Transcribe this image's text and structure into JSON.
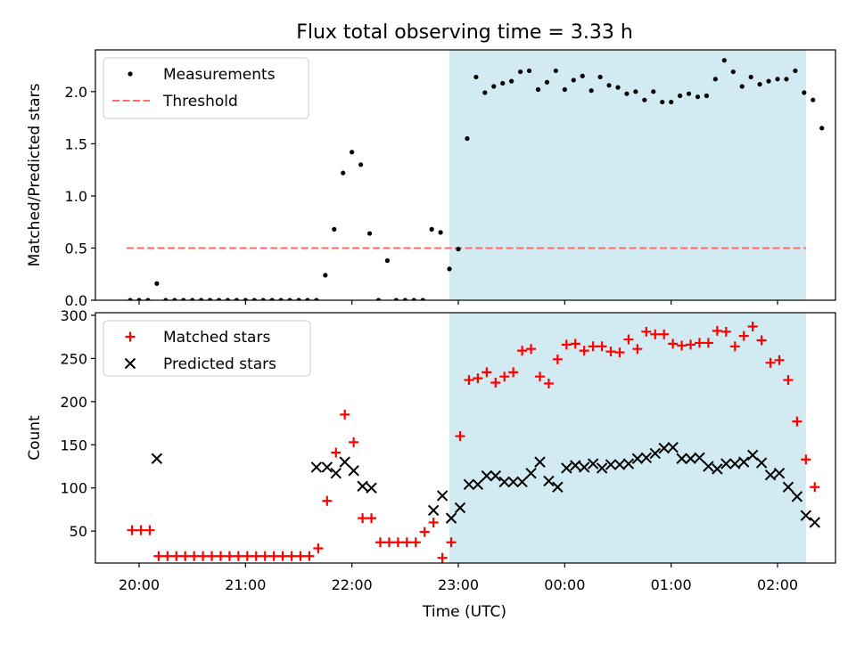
{
  "title": "Flux total observing time = 3.33 h",
  "xlabel": "Time (UTC)",
  "x_tick_labels": [
    "20:00",
    "21:00",
    "22:00",
    "23:00",
    "00:00",
    "01:00",
    "02:00"
  ],
  "colors": {
    "shade": "#add8e6",
    "threshold": "#ff6a6a",
    "matched": "#ff0000",
    "predicted": "#000000",
    "measurements": "#000000"
  },
  "chart_data": [
    {
      "type": "scatter",
      "ylabel": "Matched/Predicted stars",
      "ylim": [
        0,
        2.4
      ],
      "yticks": [
        0.0,
        0.5,
        1.0,
        1.5,
        2.0
      ],
      "y_tick_labels": [
        "0.0",
        "0.5",
        "1.0",
        "1.5",
        "2.0"
      ],
      "legend_position": "top-left",
      "observing_window": [
        "22:55",
        "02:16"
      ],
      "threshold": {
        "name": "Threshold",
        "value": 0.5,
        "x_range": [
          "19:53",
          "02:16"
        ]
      },
      "series": [
        {
          "name": "Measurements",
          "points": [
            [
              "19:55",
              0.0
            ],
            [
              "20:00",
              0.0
            ],
            [
              "20:05",
              0.0
            ],
            [
              "20:10",
              0.16
            ],
            [
              "20:15",
              0.0
            ],
            [
              "20:20",
              0.0
            ],
            [
              "20:25",
              0.0
            ],
            [
              "20:30",
              0.0
            ],
            [
              "20:35",
              0.0
            ],
            [
              "20:40",
              0.0
            ],
            [
              "20:45",
              0.0
            ],
            [
              "20:50",
              0.0
            ],
            [
              "20:55",
              0.0
            ],
            [
              "21:00",
              0.0
            ],
            [
              "21:05",
              0.0
            ],
            [
              "21:10",
              0.0
            ],
            [
              "21:15",
              0.0
            ],
            [
              "21:20",
              0.0
            ],
            [
              "21:25",
              0.0
            ],
            [
              "21:30",
              0.0
            ],
            [
              "21:35",
              0.0
            ],
            [
              "21:40",
              0.0
            ],
            [
              "21:45",
              0.24
            ],
            [
              "21:50",
              0.68
            ],
            [
              "21:55",
              1.22
            ],
            [
              "22:00",
              1.42
            ],
            [
              "22:05",
              1.3
            ],
            [
              "22:10",
              0.64
            ],
            [
              "22:15",
              0.0
            ],
            [
              "22:20",
              0.38
            ],
            [
              "22:25",
              0.0
            ],
            [
              "22:30",
              0.0
            ],
            [
              "22:35",
              0.0
            ],
            [
              "22:40",
              0.0
            ],
            [
              "22:45",
              0.68
            ],
            [
              "22:50",
              0.65
            ],
            [
              "22:55",
              0.3
            ],
            [
              "23:00",
              0.49
            ],
            [
              "23:05",
              1.55
            ],
            [
              "23:10",
              2.14
            ],
            [
              "23:15",
              1.99
            ],
            [
              "23:20",
              2.05
            ],
            [
              "23:25",
              2.08
            ],
            [
              "23:30",
              2.1
            ],
            [
              "23:35",
              2.19
            ],
            [
              "23:40",
              2.2
            ],
            [
              "23:45",
              2.02
            ],
            [
              "23:50",
              2.09
            ],
            [
              "23:55",
              2.2
            ],
            [
              "00:00",
              2.02
            ],
            [
              "00:05",
              2.11
            ],
            [
              "00:10",
              2.15
            ],
            [
              "00:15",
              2.01
            ],
            [
              "00:20",
              2.14
            ],
            [
              "00:25",
              2.06
            ],
            [
              "00:30",
              2.04
            ],
            [
              "00:35",
              1.98
            ],
            [
              "00:40",
              2.0
            ],
            [
              "00:45",
              1.92
            ],
            [
              "00:50",
              2.0
            ],
            [
              "00:55",
              1.9
            ],
            [
              "01:00",
              1.9
            ],
            [
              "01:05",
              1.96
            ],
            [
              "01:10",
              1.98
            ],
            [
              "01:15",
              1.95
            ],
            [
              "01:20",
              1.96
            ],
            [
              "01:25",
              2.12
            ],
            [
              "01:30",
              2.3
            ],
            [
              "01:35",
              2.19
            ],
            [
              "01:40",
              2.05
            ],
            [
              "01:45",
              2.14
            ],
            [
              "01:50",
              2.07
            ],
            [
              "01:55",
              2.1
            ],
            [
              "02:00",
              2.12
            ],
            [
              "02:05",
              2.12
            ],
            [
              "02:10",
              2.2
            ],
            [
              "02:15",
              1.99
            ],
            [
              "02:20",
              1.92
            ],
            [
              "02:25",
              1.65
            ]
          ]
        }
      ]
    },
    {
      "type": "scatter",
      "ylabel": "Count",
      "ylim": [
        13,
        303
      ],
      "yticks": [
        50,
        100,
        150,
        200,
        250,
        300
      ],
      "y_tick_labels": [
        "50",
        "100",
        "150",
        "200",
        "250",
        "300"
      ],
      "legend_position": "top-left",
      "observing_window": [
        "22:55",
        "02:16"
      ],
      "series": [
        {
          "name": "Matched stars",
          "marker": "plus",
          "points": [
            [
              "19:56",
              51
            ],
            [
              "20:01",
              51
            ],
            [
              "20:06",
              51
            ],
            [
              "20:11",
              21
            ],
            [
              "20:16",
              21
            ],
            [
              "20:21",
              21
            ],
            [
              "20:26",
              21
            ],
            [
              "20:31",
              21
            ],
            [
              "20:36",
              21
            ],
            [
              "20:41",
              21
            ],
            [
              "20:46",
              21
            ],
            [
              "20:51",
              21
            ],
            [
              "20:56",
              21
            ],
            [
              "21:01",
              21
            ],
            [
              "21:06",
              21
            ],
            [
              "21:11",
              21
            ],
            [
              "21:16",
              21
            ],
            [
              "21:21",
              21
            ],
            [
              "21:26",
              21
            ],
            [
              "21:31",
              21
            ],
            [
              "21:36",
              21
            ],
            [
              "21:41",
              30
            ],
            [
              "21:46",
              85
            ],
            [
              "21:51",
              141
            ],
            [
              "21:56",
              185
            ],
            [
              "22:01",
              153
            ],
            [
              "22:06",
              65
            ],
            [
              "22:11",
              65
            ],
            [
              "22:16",
              37
            ],
            [
              "22:21",
              37
            ],
            [
              "22:26",
              37
            ],
            [
              "22:31",
              37
            ],
            [
              "22:36",
              37
            ],
            [
              "22:41",
              49
            ],
            [
              "22:46",
              60
            ],
            [
              "22:51",
              19
            ],
            [
              "22:56",
              37
            ],
            [
              "23:01",
              160
            ],
            [
              "23:06",
              225
            ],
            [
              "23:11",
              227
            ],
            [
              "23:16",
              234
            ],
            [
              "23:21",
              222
            ],
            [
              "23:26",
              229
            ],
            [
              "23:31",
              234
            ],
            [
              "23:36",
              259
            ],
            [
              "23:41",
              261
            ],
            [
              "23:46",
              229
            ],
            [
              "23:51",
              221
            ],
            [
              "23:56",
              249
            ],
            [
              "00:01",
              266
            ],
            [
              "00:06",
              267
            ],
            [
              "00:11",
              259
            ],
            [
              "00:16",
              264
            ],
            [
              "00:21",
              264
            ],
            [
              "00:26",
              258
            ],
            [
              "00:31",
              257
            ],
            [
              "00:36",
              272
            ],
            [
              "00:41",
              261
            ],
            [
              "00:46",
              281
            ],
            [
              "00:51",
              278
            ],
            [
              "00:56",
              278
            ],
            [
              "01:01",
              267
            ],
            [
              "01:06",
              265
            ],
            [
              "01:11",
              266
            ],
            [
              "01:16",
              268
            ],
            [
              "01:21",
              268
            ],
            [
              "01:26",
              282
            ],
            [
              "01:31",
              281
            ],
            [
              "01:36",
              264
            ],
            [
              "01:41",
              276
            ],
            [
              "01:46",
              287
            ],
            [
              "01:51",
              271
            ],
            [
              "01:56",
              245
            ],
            [
              "02:01",
              248
            ],
            [
              "02:06",
              225
            ],
            [
              "02:11",
              177
            ],
            [
              "02:16",
              133
            ],
            [
              "02:21",
              101
            ]
          ]
        },
        {
          "name": "Predicted stars",
          "marker": "x",
          "points": [
            [
              "20:10",
              134
            ],
            [
              "21:40",
              124
            ],
            [
              "21:46",
              124
            ],
            [
              "21:51",
              117
            ],
            [
              "21:56",
              130
            ],
            [
              "22:01",
              120
            ],
            [
              "22:06",
              102
            ],
            [
              "22:11",
              100
            ],
            [
              "22:46",
              74
            ],
            [
              "22:51",
              91
            ],
            [
              "22:56",
              65
            ],
            [
              "23:01",
              77
            ],
            [
              "23:06",
              104
            ],
            [
              "23:11",
              104
            ],
            [
              "23:16",
              114
            ],
            [
              "23:21",
              114
            ],
            [
              "23:26",
              107
            ],
            [
              "23:31",
              107
            ],
            [
              "23:36",
              107
            ],
            [
              "23:41",
              117
            ],
            [
              "23:46",
              130
            ],
            [
              "23:51",
              108
            ],
            [
              "23:56",
              101
            ],
            [
              "00:01",
              123
            ],
            [
              "00:06",
              126
            ],
            [
              "00:11",
              124
            ],
            [
              "00:16",
              128
            ],
            [
              "00:21",
              123
            ],
            [
              "00:26",
              127
            ],
            [
              "00:31",
              127
            ],
            [
              "00:36",
              128
            ],
            [
              "00:41",
              134
            ],
            [
              "00:46",
              135
            ],
            [
              "00:51",
              140
            ],
            [
              "00:56",
              146
            ],
            [
              "01:01",
              147
            ],
            [
              "01:06",
              134
            ],
            [
              "01:11",
              134
            ],
            [
              "01:16",
              135
            ],
            [
              "01:21",
              125
            ],
            [
              "01:26",
              122
            ],
            [
              "01:31",
              128
            ],
            [
              "01:36",
              128
            ],
            [
              "01:41",
              130
            ],
            [
              "01:46",
              138
            ],
            [
              "01:51",
              129
            ],
            [
              "01:56",
              115
            ],
            [
              "02:01",
              117
            ],
            [
              "02:06",
              101
            ],
            [
              "02:11",
              90
            ],
            [
              "02:16",
              68
            ],
            [
              "02:21",
              60
            ]
          ]
        }
      ]
    }
  ]
}
